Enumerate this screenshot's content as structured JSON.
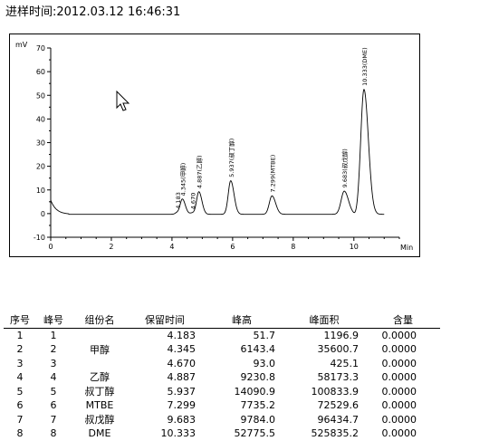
{
  "header": {
    "inject_time": "进样时间:2012.03.12  16:46:31"
  },
  "chart_data": {
    "type": "line",
    "ylabel": "mV",
    "xlabel": "Min",
    "xlim": [
      0,
      11.5
    ],
    "ylim": [
      -10,
      70
    ],
    "x_ticks": [
      0,
      2,
      4,
      6,
      8,
      10
    ],
    "y_ticks": [
      -10,
      0,
      10,
      20,
      30,
      40,
      50,
      60,
      70
    ],
    "peaks": [
      {
        "rt": 4.183,
        "height_mv": 0.8,
        "label": "4.183"
      },
      {
        "rt": 4.345,
        "height_mv": 6.3,
        "label": "4.345(甲醇)"
      },
      {
        "rt": 4.67,
        "height_mv": 0.6,
        "label": "4.670"
      },
      {
        "rt": 4.887,
        "height_mv": 9.5,
        "label": "4.887(乙醇)"
      },
      {
        "rt": 5.937,
        "height_mv": 14.2,
        "label": "5.937(叔丁醇)"
      },
      {
        "rt": 7.299,
        "height_mv": 7.8,
        "label": "7.299(MTBE)"
      },
      {
        "rt": 9.683,
        "height_mv": 9.8,
        "label": "9.683(叔戊醇)"
      },
      {
        "rt": 10.333,
        "height_mv": 52.8,
        "label": "10.333(DME)"
      }
    ]
  },
  "table": {
    "headers": [
      "序号",
      "峰号",
      "组份名",
      "保留时间",
      "峰高",
      "峰面积",
      "含量"
    ],
    "rows": [
      [
        "1",
        "1",
        "",
        "4.183",
        "51.7",
        "1196.9",
        "0.0000"
      ],
      [
        "2",
        "2",
        "甲醇",
        "4.345",
        "6143.4",
        "35600.7",
        "0.0000"
      ],
      [
        "3",
        "3",
        "",
        "4.670",
        "93.0",
        "425.1",
        "0.0000"
      ],
      [
        "4",
        "4",
        "乙醇",
        "4.887",
        "9230.8",
        "58173.3",
        "0.0000"
      ],
      [
        "5",
        "5",
        "叔丁醇",
        "5.937",
        "14090.9",
        "100833.9",
        "0.0000"
      ],
      [
        "6",
        "6",
        "MTBE",
        "7.299",
        "7735.2",
        "72529.6",
        "0.0000"
      ],
      [
        "7",
        "7",
        "叔戊醇",
        "9.683",
        "9784.0",
        "96434.7",
        "0.0000"
      ],
      [
        "8",
        "8",
        "DME",
        "10.333",
        "52775.5",
        "525835.2",
        "0.0000"
      ]
    ]
  }
}
